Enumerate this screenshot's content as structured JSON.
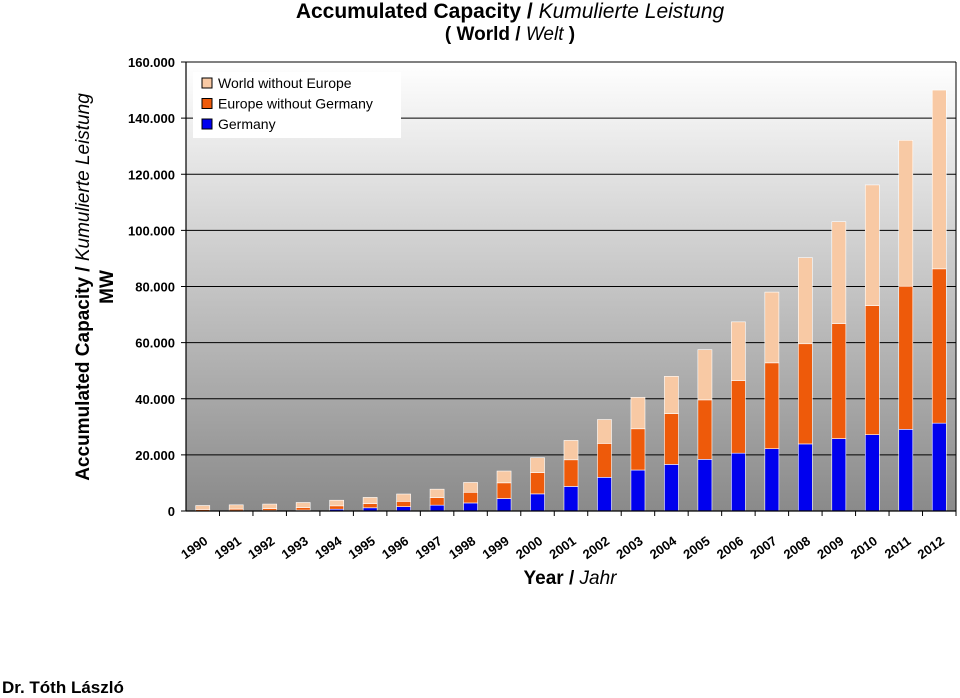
{
  "title_main": "Accumulated Capacity",
  "title_sep": " / ",
  "title_alt": "Kumulierte Leistung",
  "subtitle_open": "( World",
  "subtitle_sep": " / ",
  "subtitle_alt": "Welt",
  "subtitle_close": " )",
  "author": "Dr. Tóth László",
  "chart_data": {
    "type": "bar",
    "stacked": true,
    "ylabel_main": "Accumulated Capacity",
    "ylabel_sep": " / ",
    "ylabel_alt": "Kumulierte Leistung",
    "ylabel_unit": "MW",
    "xlabel_main": "Year",
    "xlabel_sep": " / ",
    "xlabel_alt": "Jahr",
    "ylim": [
      0,
      160000
    ],
    "yticks": [
      0,
      20000,
      40000,
      60000,
      80000,
      100000,
      120000,
      140000,
      160000
    ],
    "ytick_labels": [
      "0",
      "20.000",
      "40.000",
      "60.000",
      "80.000",
      "100.000",
      "120.000",
      "140.000",
      "160.000"
    ],
    "grid": true,
    "legend_position": "top-left",
    "categories": [
      "1990",
      "1991",
      "1992",
      "1993",
      "1994",
      "1995",
      "1996",
      "1997",
      "1998",
      "1999",
      "2000",
      "2001",
      "2002",
      "2003",
      "2004",
      "2005",
      "2006",
      "2007",
      "2008",
      "2009",
      "2010",
      "2011",
      "2012"
    ],
    "series": [
      {
        "name": "Germany",
        "color": "#0000ee",
        "values": [
          60,
          100,
          170,
          330,
          640,
          1140,
          1550,
          2080,
          2870,
          4440,
          6100,
          8750,
          12000,
          14600,
          16600,
          18400,
          20600,
          22200,
          23900,
          25800,
          27200,
          29100,
          31300
        ]
      },
      {
        "name": "Europe without Germany",
        "color": "#ee5a0a",
        "values": [
          500,
          600,
          700,
          900,
          1200,
          1500,
          1900,
          2700,
          3800,
          5600,
          7600,
          9500,
          12100,
          14700,
          18100,
          21200,
          25900,
          30600,
          35700,
          41000,
          46000,
          51000,
          55000
        ]
      },
      {
        "name": "World without Europe",
        "color": "#f8c9a4",
        "values": [
          1400,
          1500,
          1600,
          1800,
          2000,
          2200,
          2600,
          3000,
          3500,
          4200,
          5300,
          6900,
          8500,
          11200,
          13300,
          17900,
          20900,
          25200,
          30700,
          36300,
          43000,
          52000,
          63700
        ]
      }
    ]
  }
}
